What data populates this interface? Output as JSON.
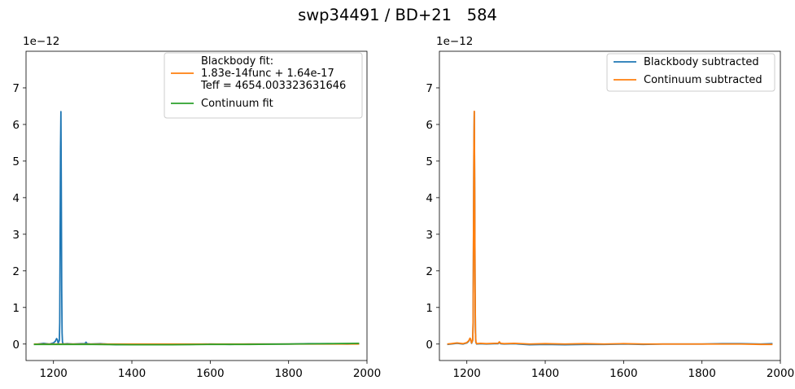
{
  "figure": {
    "title": "swp34491 / BD+21   584"
  },
  "chart_data": [
    {
      "type": "line",
      "xlim": [
        1130,
        2000
      ],
      "ylim": [
        -0.45,
        8.0
      ],
      "y_scale_label": "1e−12",
      "x_ticks": [
        1200,
        1400,
        1600,
        1800,
        2000
      ],
      "y_ticks": [
        0,
        1,
        2,
        3,
        4,
        5,
        6,
        7
      ],
      "legend_position": "upper right",
      "grid": false,
      "series": [
        {
          "name": "",
          "color": "#1f77b4",
          "x": [
            1150,
            1160,
            1175,
            1190,
            1200,
            1205,
            1208,
            1210,
            1212,
            1215,
            1216,
            1217,
            1218,
            1219,
            1220,
            1221,
            1222,
            1223,
            1225,
            1235,
            1250,
            1270,
            1280,
            1283,
            1286,
            1295,
            1320,
            1360,
            1400,
            1450,
            1500,
            1550,
            1600,
            1650,
            1700,
            1750,
            1800,
            1850,
            1900,
            1950,
            1980
          ],
          "y": [
            -0.01,
            0.0,
            0.02,
            0.0,
            0.03,
            0.08,
            0.15,
            0.12,
            0.02,
            0.1,
            0.6,
            3.0,
            5.3,
            6.35,
            4.2,
            1.5,
            0.3,
            0.05,
            0.0,
            0.01,
            0.0,
            0.01,
            0.01,
            0.05,
            0.01,
            0.0,
            0.01,
            -0.02,
            -0.01,
            -0.02,
            -0.01,
            -0.01,
            0.0,
            -0.01,
            0.0,
            0.0,
            0.0,
            0.01,
            0.01,
            0.0,
            0.01
          ]
        },
        {
          "name": "Blackbody fit:\n1.83e-14func + 1.64e-17\nTeff = 4654.003323631646",
          "color": "#ff7f0e",
          "x": [
            1150,
            1250,
            1350,
            1450,
            1550,
            1650,
            1750,
            1850,
            1980
          ],
          "y": [
            0.0,
            0.0,
            0.0,
            0.0,
            0.0,
            0.0,
            0.0,
            0.0,
            0.0
          ]
        },
        {
          "name": "Continuum fit",
          "color": "#2ca02c",
          "x": [
            1150,
            1200,
            1300,
            1400,
            1500,
            1600,
            1700,
            1800,
            1900,
            1980
          ],
          "y": [
            -0.01,
            -0.01,
            -0.01,
            -0.02,
            -0.02,
            -0.01,
            -0.01,
            0.0,
            0.01,
            0.02
          ]
        }
      ]
    },
    {
      "type": "line",
      "xlim": [
        1130,
        2000
      ],
      "ylim": [
        -0.45,
        8.0
      ],
      "y_scale_label": "1e−12",
      "x_ticks": [
        1200,
        1400,
        1600,
        1800,
        2000
      ],
      "y_ticks": [
        0,
        1,
        2,
        3,
        4,
        5,
        6,
        7
      ],
      "legend_position": "upper right",
      "grid": false,
      "series": [
        {
          "name": "Blackbody subtracted",
          "color": "#1f77b4",
          "x": [
            1150,
            1160,
            1175,
            1190,
            1200,
            1205,
            1208,
            1210,
            1212,
            1215,
            1216,
            1217,
            1218,
            1219,
            1220,
            1221,
            1222,
            1223,
            1225,
            1235,
            1250,
            1270,
            1280,
            1283,
            1286,
            1295,
            1320,
            1360,
            1400,
            1450,
            1500,
            1550,
            1600,
            1650,
            1700,
            1750,
            1800,
            1850,
            1900,
            1950,
            1980
          ],
          "y": [
            -0.01,
            0.0,
            0.02,
            0.0,
            0.03,
            0.08,
            0.15,
            0.12,
            0.02,
            0.1,
            0.6,
            3.0,
            5.3,
            6.35,
            4.2,
            1.5,
            0.3,
            0.05,
            0.0,
            0.01,
            0.0,
            0.01,
            0.01,
            0.05,
            0.01,
            0.0,
            0.01,
            -0.02,
            -0.01,
            -0.02,
            -0.01,
            -0.01,
            0.0,
            -0.01,
            0.0,
            0.0,
            0.0,
            0.01,
            0.01,
            0.0,
            0.01
          ]
        },
        {
          "name": "Continuum subtracted",
          "color": "#ff7f0e",
          "x": [
            1150,
            1160,
            1175,
            1190,
            1200,
            1205,
            1208,
            1210,
            1212,
            1215,
            1216,
            1217,
            1218,
            1219,
            1220,
            1221,
            1222,
            1223,
            1225,
            1235,
            1250,
            1270,
            1280,
            1283,
            1286,
            1295,
            1320,
            1360,
            1400,
            1450,
            1500,
            1550,
            1600,
            1650,
            1700,
            1750,
            1800,
            1850,
            1900,
            1950,
            1980
          ],
          "y": [
            0.0,
            0.01,
            0.03,
            0.01,
            0.04,
            0.09,
            0.16,
            0.13,
            0.03,
            0.11,
            0.61,
            3.01,
            5.31,
            6.36,
            4.21,
            1.51,
            0.31,
            0.06,
            0.01,
            0.02,
            0.01,
            0.02,
            0.02,
            0.06,
            0.02,
            0.01,
            0.02,
            0.0,
            0.01,
            0.0,
            0.01,
            0.0,
            0.01,
            0.0,
            0.0,
            0.0,
            0.0,
            0.0,
            0.0,
            -0.01,
            -0.01
          ]
        }
      ]
    }
  ]
}
